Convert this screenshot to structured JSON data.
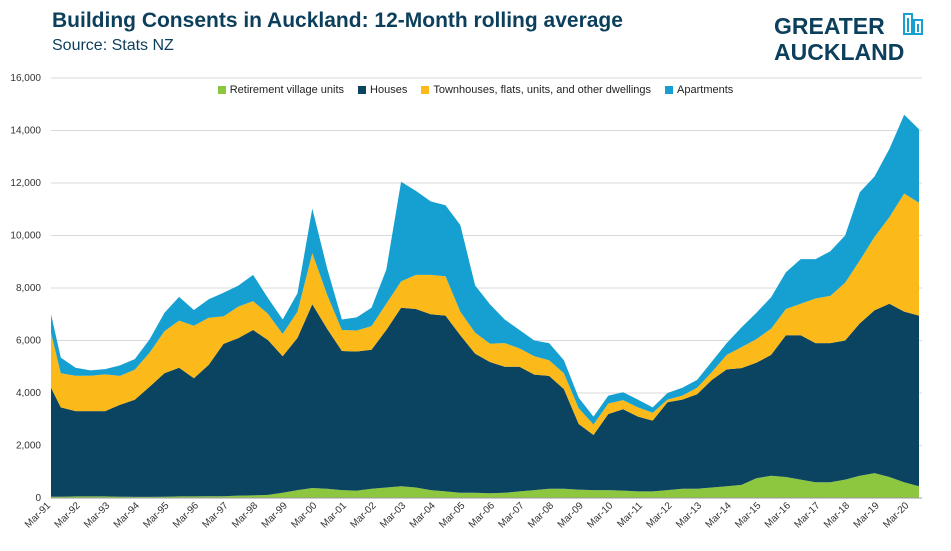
{
  "header": {
    "title": "Building Consents in Auckland: 12-Month rolling average",
    "subtitle": "Source: Stats NZ"
  },
  "logo": {
    "line1": "GREATER",
    "line2": "AUCKLAND",
    "icon": "city-skyline-icon"
  },
  "colors": {
    "retirement": "#8dc63f",
    "houses": "#0b4461",
    "townhouses": "#fbb91a",
    "apartments": "#16a0d2",
    "title": "#0c3f5c"
  },
  "chart_data": {
    "type": "area",
    "stacked": true,
    "title": "Building Consents in Auckland: 12-Month rolling average",
    "subtitle": "Source: Stats NZ",
    "xlabel": "",
    "ylabel": "",
    "ylim": [
      0,
      16000
    ],
    "yticks": [
      0,
      2000,
      4000,
      6000,
      8000,
      10000,
      12000,
      14000,
      16000
    ],
    "ytick_labels": [
      "0",
      "2,000",
      "4,000",
      "6,000",
      "8,000",
      "10,000",
      "12,000",
      "14,000",
      "16,000"
    ],
    "grid": true,
    "legend": "top",
    "x_tick_labels": [
      "Mar-91",
      "Mar-92",
      "Mar-93",
      "Mar-94",
      "Mar-95",
      "Mar-96",
      "Mar-97",
      "Mar-98",
      "Mar-99",
      "Mar-00",
      "Mar-01",
      "Mar-02",
      "Mar-03",
      "Mar-04",
      "Mar-05",
      "Mar-06",
      "Mar-07",
      "Mar-08",
      "Mar-09",
      "Mar-10",
      "Mar-11",
      "Mar-12",
      "Mar-13",
      "Mar-14",
      "Mar-15",
      "Mar-16",
      "Mar-17",
      "Mar-18",
      "Mar-19",
      "Mar-20"
    ],
    "x": [
      1991.17,
      1991.5,
      1992.0,
      1992.5,
      1993.0,
      1993.5,
      1994.0,
      1994.5,
      1995.0,
      1995.5,
      1996.0,
      1996.5,
      1997.0,
      1997.5,
      1998.0,
      1998.5,
      1999.0,
      1999.5,
      2000.0,
      2000.5,
      2001.0,
      2001.5,
      2002.0,
      2002.5,
      2003.0,
      2003.5,
      2004.0,
      2004.5,
      2005.0,
      2005.5,
      2006.0,
      2006.5,
      2007.0,
      2007.5,
      2008.0,
      2008.5,
      2009.0,
      2009.5,
      2010.0,
      2010.5,
      2011.0,
      2011.5,
      2012.0,
      2012.5,
      2013.0,
      2013.5,
      2014.0,
      2014.5,
      2015.0,
      2015.5,
      2016.0,
      2016.5,
      2017.0,
      2017.5,
      2018.0,
      2018.5,
      2019.0,
      2019.5,
      2020.0,
      2020.5
    ],
    "series": [
      {
        "name": "Retirement village units",
        "key": "retirement",
        "values": [
          50,
          50,
          60,
          60,
          60,
          50,
          40,
          40,
          50,
          60,
          60,
          70,
          70,
          90,
          100,
          120,
          200,
          300,
          380,
          350,
          300,
          280,
          350,
          400,
          450,
          400,
          300,
          250,
          200,
          200,
          180,
          200,
          250,
          300,
          350,
          350,
          320,
          300,
          300,
          280,
          250,
          250,
          300,
          350,
          350,
          400,
          450,
          500,
          750,
          850,
          800,
          700,
          600,
          600,
          700,
          850,
          950,
          800,
          600,
          450
        ]
      },
      {
        "name": "Houses",
        "key": "houses",
        "values": [
          4150,
          3400,
          3250,
          3250,
          3250,
          3500,
          3700,
          4200,
          4700,
          4900,
          4500,
          5000,
          5800,
          6000,
          6300,
          5900,
          5200,
          5800,
          7000,
          6100,
          5300,
          5300,
          5300,
          6000,
          6800,
          6800,
          6700,
          6700,
          6000,
          5300,
          5000,
          4800,
          4750,
          4400,
          4300,
          3800,
          2500,
          2100,
          2900,
          3100,
          2850,
          2700,
          3350,
          3400,
          3600,
          4100,
          4450,
          4450,
          4400,
          4600,
          5400,
          5500,
          5300,
          5300,
          5300,
          5800,
          6200,
          6600,
          6500,
          6500
        ]
      },
      {
        "name": "Townhouses, flats, units, and other dwellings",
        "key": "townhouses",
        "values": [
          2100,
          1300,
          1350,
          1350,
          1400,
          1100,
          1150,
          1300,
          1600,
          1800,
          2000,
          1800,
          1050,
          1200,
          1100,
          1000,
          850,
          1000,
          1950,
          1300,
          800,
          800,
          900,
          1000,
          1000,
          1300,
          1500,
          1500,
          900,
          800,
          700,
          900,
          700,
          700,
          600,
          600,
          600,
          400,
          400,
          350,
          350,
          300,
          100,
          150,
          250,
          300,
          550,
          800,
          900,
          1000,
          1000,
          1200,
          1700,
          1800,
          2200,
          2400,
          2800,
          3300,
          4500,
          4300
        ]
      },
      {
        "name": "Apartments",
        "key": "apartments",
        "values": [
          700,
          600,
          300,
          200,
          200,
          400,
          400,
          500,
          700,
          900,
          600,
          700,
          900,
          800,
          1000,
          600,
          550,
          700,
          1700,
          1000,
          400,
          500,
          700,
          1300,
          3800,
          3200,
          2800,
          2700,
          3300,
          1800,
          1500,
          900,
          700,
          600,
          650,
          500,
          400,
          300,
          300,
          300,
          300,
          200,
          250,
          300,
          300,
          400,
          450,
          750,
          1000,
          1200,
          1400,
          1700,
          1500,
          1700,
          1800,
          2600,
          2300,
          2600,
          3000,
          2800
        ]
      }
    ]
  }
}
